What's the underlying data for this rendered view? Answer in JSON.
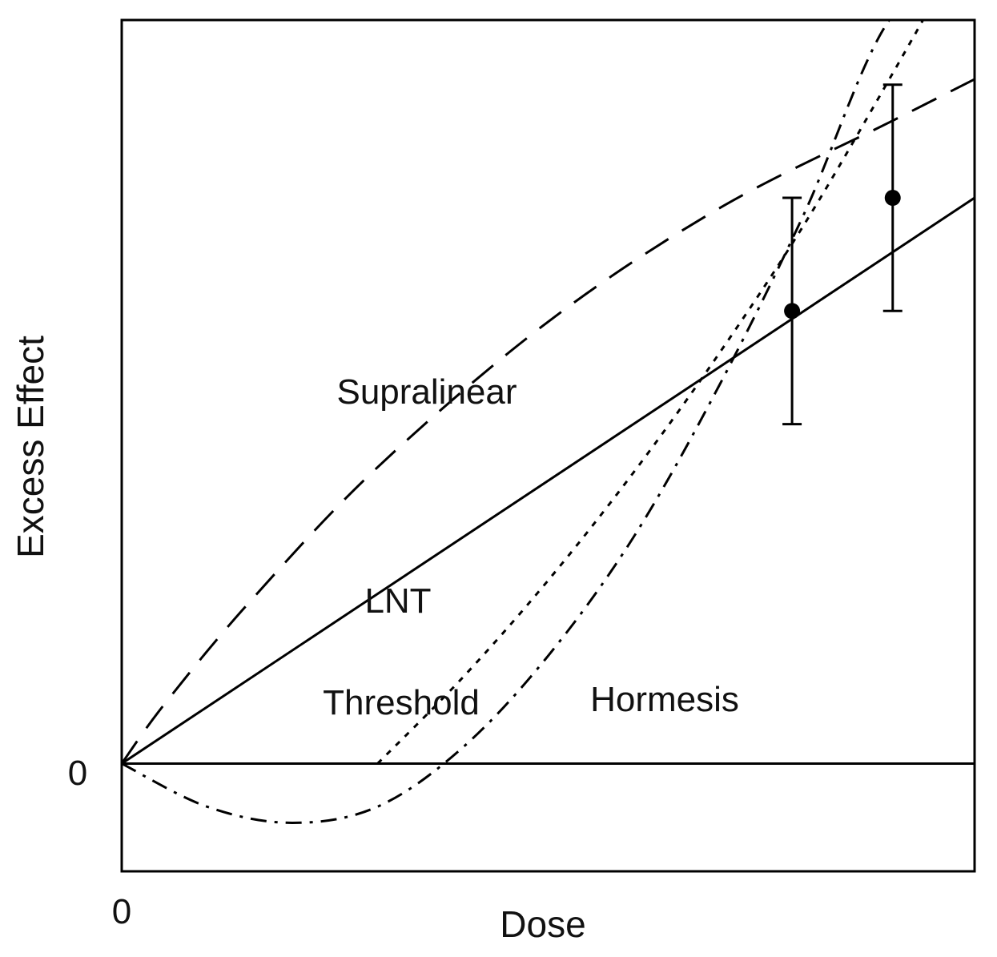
{
  "chart_data": {
    "type": "line",
    "xlabel": "Dose",
    "ylabel": "Excess Effect",
    "x_tick_labels": [
      "0"
    ],
    "y_tick_labels": [
      "0"
    ],
    "xlim": [
      0,
      1
    ],
    "ylim": [
      -0.2,
      1.38
    ],
    "grid": false,
    "legend": "none",
    "series": [
      {
        "name": "LNT",
        "style": "solid",
        "x": [
          0,
          1
        ],
        "y": [
          0,
          1.05
        ]
      },
      {
        "name": "Supralinear",
        "style": "dashed",
        "x": [
          0,
          0.05,
          0.15,
          0.3,
          0.5,
          0.7,
          0.9,
          1.0
        ],
        "y": [
          0,
          0.11,
          0.3,
          0.55,
          0.82,
          1.03,
          1.19,
          1.27
        ]
      },
      {
        "name": "Threshold",
        "style": "dotted",
        "x": [
          0.3,
          0.4,
          0.5,
          0.6,
          0.7,
          0.8,
          0.9,
          1.0
        ],
        "y": [
          0,
          0.16,
          0.34,
          0.54,
          0.76,
          1.0,
          1.27,
          1.55
        ]
      },
      {
        "name": "Hormesis",
        "style": "dashdot",
        "x": [
          0,
          0.1,
          0.2,
          0.3,
          0.4,
          0.5,
          0.6,
          0.7,
          0.8,
          0.9,
          1.0
        ],
        "y": [
          0,
          -0.08,
          -0.11,
          -0.08,
          0.03,
          0.2,
          0.42,
          0.7,
          1.02,
          1.38,
          1.48
        ]
      }
    ],
    "points": [
      {
        "x": 0.786,
        "y": 0.84,
        "err_low": 0.63,
        "err_high": 1.05
      },
      {
        "x": 0.904,
        "y": 1.05,
        "err_low": 0.84,
        "err_high": 1.26
      }
    ],
    "annotations": [
      "Supralinear",
      "LNT",
      "Threshold",
      "Hormesis"
    ]
  }
}
